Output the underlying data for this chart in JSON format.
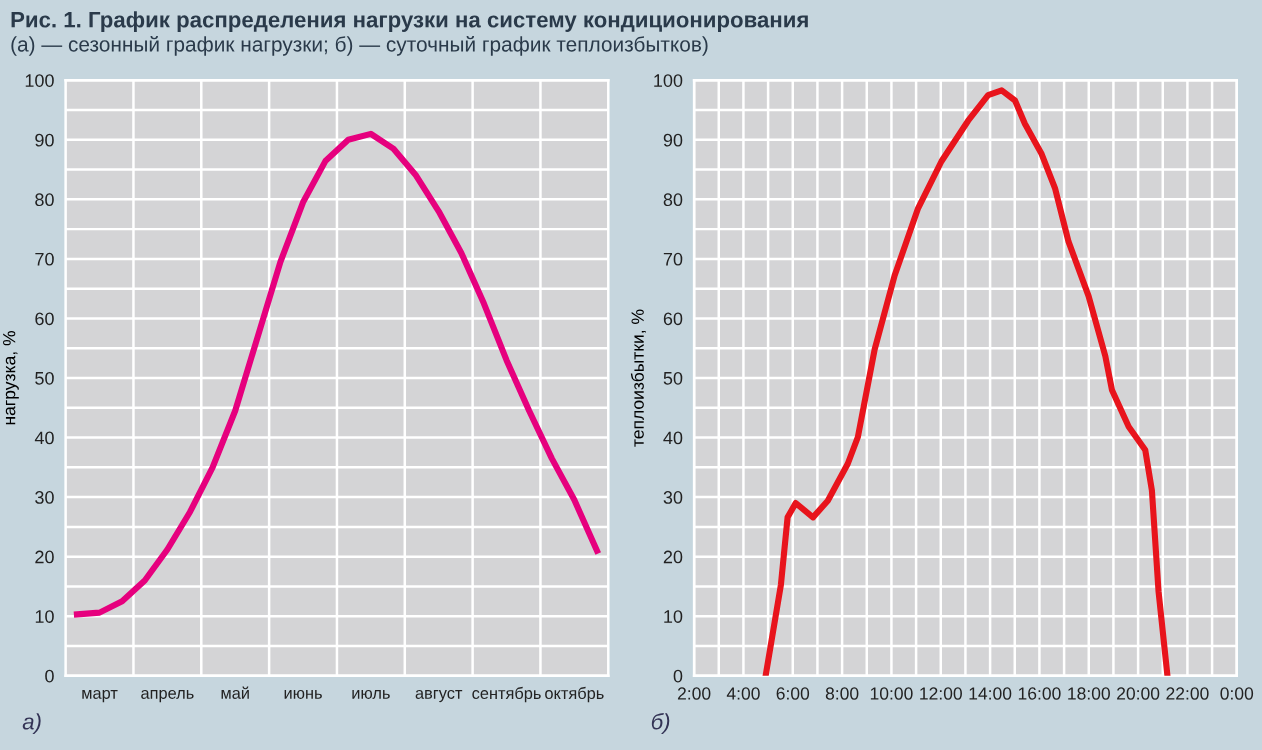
{
  "chart_data": [
    {
      "type": "line",
      "title": "Рис. 1. График распределения нагрузки на систему кондиционирования",
      "subtitle": "(а) — сезонный график нагрузки; б) — суточный график теплоизбытков)",
      "ylabel": "нагрузка, %",
      "annotations": [
        "а)"
      ],
      "categories": [
        null,
        "март",
        null,
        null,
        "апрель",
        null,
        null,
        "май",
        null,
        null,
        "июнь",
        null,
        null,
        "июль",
        null,
        null,
        "август",
        null,
        null,
        "сентябрь",
        null,
        null,
        "октябрь",
        null
      ],
      "series": [
        {
          "color": "#e6007e",
          "values": [
            10.3,
            10.6,
            12.5,
            16,
            21.2,
            27.5,
            35,
            44.5,
            57,
            69.5,
            79.5,
            86.5,
            90,
            91,
            88.5,
            84,
            78,
            71,
            62.5,
            53,
            44.5,
            36.5,
            29.5,
            21
          ]
        }
      ],
      "ylim": [
        0,
        100
      ],
      "yticks": [
        0,
        10,
        20,
        30,
        40,
        50,
        60,
        70,
        80,
        90,
        100,
        {
          "value": 5,
          "label": null
        },
        {
          "value": 15,
          "label": null
        },
        {
          "value": 25,
          "label": null
        },
        {
          "value": 35,
          "label": null
        },
        {
          "value": 45,
          "label": null
        },
        {
          "value": 55,
          "label": null
        },
        {
          "value": 65,
          "label": null
        },
        {
          "value": 75,
          "label": null
        },
        {
          "value": 85,
          "label": null
        },
        {
          "value": 95,
          "label": null
        }
      ],
      "grid": true,
      "marker": "none",
      "line_style": "solid",
      "legend": false
    },
    {
      "type": "line",
      "ylabel": "теплоизбытки, %",
      "annotations": [
        "б)"
      ],
      "x": [
        4.9,
        5.52,
        5.79,
        6.12,
        6.82,
        7.42,
        8.23,
        8.64,
        9.32,
        10.13,
        11.08,
        12.03,
        13.11,
        13.92,
        14.47,
        15.01,
        15.41,
        16.09,
        16.63,
        17.18,
        17.99,
        18.67,
        18.94,
        19.62,
        20.29,
        20.56,
        20.83,
        21.19
      ],
      "series": [
        {
          "color": "#e8141c",
          "values": [
            0,
            15.3,
            26.6,
            29.0,
            26.6,
            29.4,
            35.6,
            40.1,
            54.8,
            67.2,
            78.5,
            86.4,
            93.2,
            97.5,
            98.3,
            96.6,
            92.7,
            87.6,
            81.9,
            72.9,
            63.8,
            53.7,
            48,
            41.8,
            37.9,
            31.1,
            14.1,
            0
          ]
        }
      ],
      "xlim": [
        2,
        24
      ],
      "xticks": [
        {
          "value": 2,
          "label": "2:00"
        },
        {
          "value": 4,
          "label": "4:00"
        },
        {
          "value": 6,
          "label": "6:00"
        },
        {
          "value": 8,
          "label": "8:00"
        },
        {
          "value": 10,
          "label": "10:00"
        },
        {
          "value": 12,
          "label": "12:00"
        },
        {
          "value": 14,
          "label": "14:00"
        },
        {
          "value": 16,
          "label": "16:00"
        },
        {
          "value": 18,
          "label": "18:00"
        },
        {
          "value": 20,
          "label": "20:00"
        },
        {
          "value": 22,
          "label": "22:00"
        },
        {
          "value": 24,
          "label": "0:00"
        },
        {
          "value": 3,
          "label": null
        },
        {
          "value": 5,
          "label": null
        },
        {
          "value": 7,
          "label": null
        },
        {
          "value": 9,
          "label": null
        },
        {
          "value": 11,
          "label": null
        },
        {
          "value": 13,
          "label": null
        },
        {
          "value": 15,
          "label": null
        },
        {
          "value": 17,
          "label": null
        },
        {
          "value": 19,
          "label": null
        },
        {
          "value": 21,
          "label": null
        },
        {
          "value": 23,
          "label": null
        }
      ],
      "ylim": [
        0,
        100
      ],
      "yticks": [
        0,
        10,
        20,
        30,
        40,
        50,
        60,
        70,
        80,
        90,
        100,
        {
          "value": 5,
          "label": null
        },
        {
          "value": 15,
          "label": null
        },
        {
          "value": 25,
          "label": null
        },
        {
          "value": 35,
          "label": null
        },
        {
          "value": 45,
          "label": null
        },
        {
          "value": 55,
          "label": null
        },
        {
          "value": 65,
          "label": null
        },
        {
          "value": 75,
          "label": null
        },
        {
          "value": 85,
          "label": null
        },
        {
          "value": 95,
          "label": null
        }
      ],
      "grid": true,
      "marker": "none",
      "line_style": "solid",
      "legend": false
    }
  ]
}
